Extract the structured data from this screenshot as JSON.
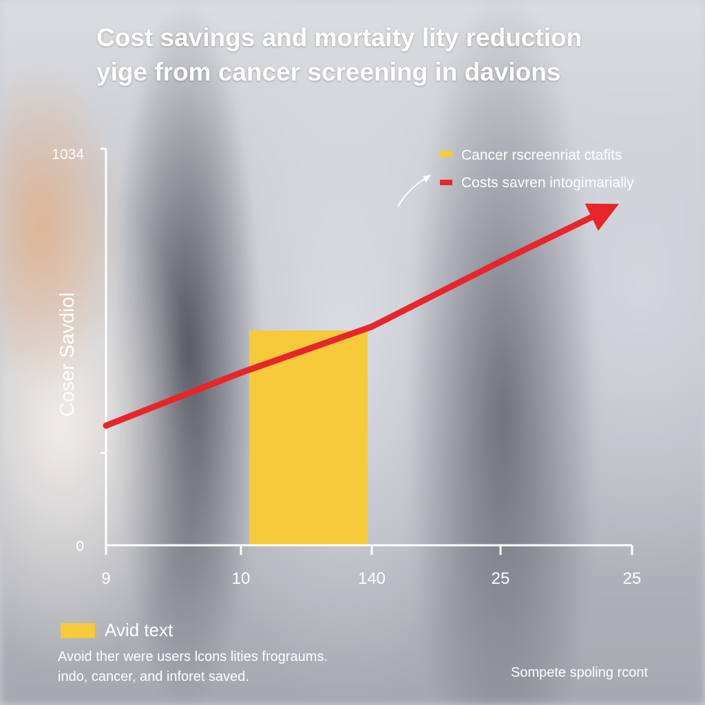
{
  "title": {
    "line1": "Cost savings and mortaity lity reduction",
    "line2": "yige from cancer screening in davions"
  },
  "chart_data": {
    "type": "bar",
    "categories": [
      "9",
      "10",
      "140",
      "25",
      "25"
    ],
    "y_ticks": [
      "1034",
      "0"
    ],
    "ylabel": "Coser Savdiol",
    "ylim": [
      0,
      1034
    ],
    "series": [
      {
        "name": "Cancer rscreenriat ctafits",
        "kind": "bar",
        "color": "#f6ca3a",
        "from": 1,
        "to": 2,
        "value": 560
      },
      {
        "name": "Costs savren intogimarially",
        "kind": "line",
        "color": "#e8252b",
        "points": [
          [
            0,
            312
          ],
          [
            1,
            450
          ],
          [
            2,
            570
          ],
          [
            3,
            740
          ],
          [
            3.9,
            890
          ]
        ]
      }
    ],
    "legend_position": "top-right",
    "grid": false
  },
  "footer": {
    "legend_note": "Avid text",
    "line1": "Avoid ther were users lcons lities frograums.",
    "line2": "indo, cancer, and inforet saved.",
    "source": "Sompete spoling rcont"
  }
}
